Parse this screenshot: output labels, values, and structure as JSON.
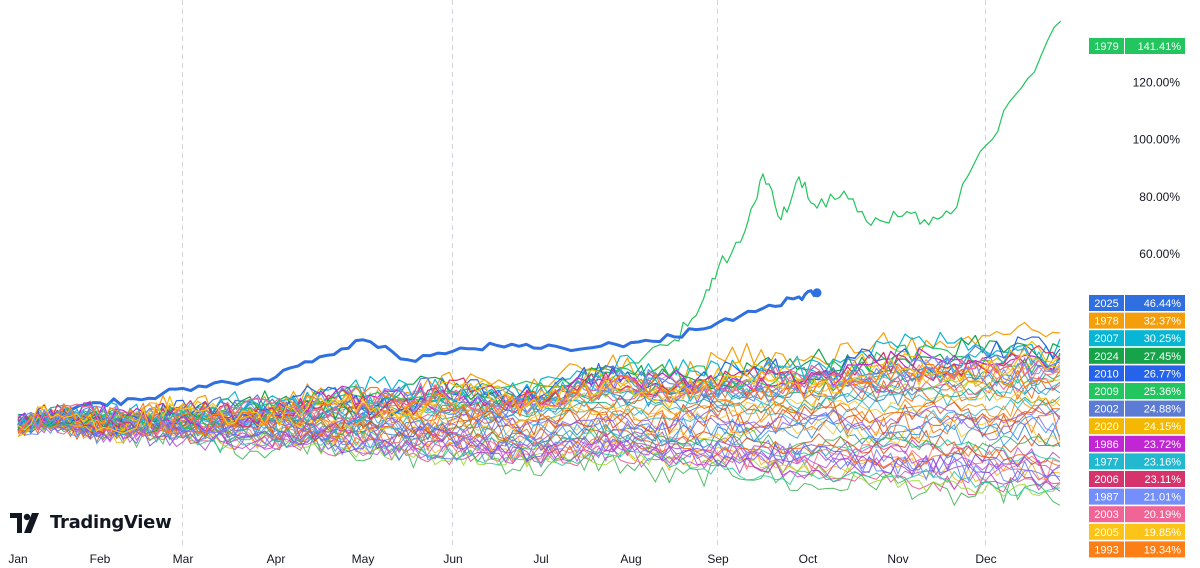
{
  "brand": {
    "name": "TradingView"
  },
  "chart_data": {
    "type": "line",
    "x_axis": {
      "ticks": [
        "Jan",
        "Feb",
        "Mar",
        "Apr",
        "May",
        "Jun",
        "Jul",
        "Aug",
        "Sep",
        "Oct",
        "Nov",
        "Dec"
      ]
    },
    "y_axis": {
      "ticks": [
        "60.00%",
        "80.00%",
        "100.00%",
        "120.00%"
      ],
      "ylim": [
        -40,
        146
      ],
      "unit": "%"
    },
    "grid": {
      "vertical_dashed_at": [
        "Mar",
        "Jun",
        "Sep",
        "Dec"
      ]
    },
    "series": [
      {
        "name": "1979",
        "label": "141.41%",
        "color": "#22c55e",
        "final": 141.41,
        "points": [
          [
            0,
            0
          ],
          [
            1,
            3
          ],
          [
            2,
            5
          ],
          [
            3,
            8
          ],
          [
            4,
            10
          ],
          [
            5,
            12
          ],
          [
            6,
            14
          ],
          [
            7,
            22
          ],
          [
            7.5,
            30
          ],
          [
            7.8,
            42
          ],
          [
            8,
            55
          ],
          [
            8.3,
            68
          ],
          [
            8.5,
            88
          ],
          [
            8.7,
            72
          ],
          [
            8.9,
            87
          ],
          [
            9.1,
            76
          ],
          [
            9.4,
            82
          ],
          [
            9.7,
            70
          ],
          [
            10,
            73
          ],
          [
            10.3,
            72
          ],
          [
            10.6,
            74
          ],
          [
            11,
            98
          ],
          [
            11.4,
            118
          ],
          [
            11.85,
            141.41
          ]
        ]
      },
      {
        "name": "2025",
        "label": "46.44%",
        "color": "#2f6fe0",
        "final": 46.44,
        "highlight": true,
        "points": [
          [
            0,
            0
          ],
          [
            0.5,
            4
          ],
          [
            1,
            8
          ],
          [
            1.5,
            9
          ],
          [
            2,
            13
          ],
          [
            2.5,
            15
          ],
          [
            3,
            17
          ],
          [
            3.5,
            24
          ],
          [
            4,
            30
          ],
          [
            4.5,
            23
          ],
          [
            5,
            26
          ],
          [
            5.5,
            28
          ],
          [
            6,
            27
          ],
          [
            6.5,
            27
          ],
          [
            7,
            29
          ],
          [
            7.5,
            31
          ],
          [
            8,
            36
          ],
          [
            8.5,
            41
          ],
          [
            8.9,
            45
          ],
          [
            9.1,
            46.44
          ]
        ]
      },
      {
        "name": "1978",
        "label": "32.37%",
        "color": "#f59e0b",
        "final": 32.37
      },
      {
        "name": "2007",
        "label": "30.25%",
        "color": "#06b6d4",
        "final": 30.25
      },
      {
        "name": "2024",
        "label": "27.45%",
        "color": "#16a34a",
        "final": 27.45
      },
      {
        "name": "2010",
        "label": "26.77%",
        "color": "#2563eb",
        "final": 26.77
      },
      {
        "name": "2009",
        "label": "25.36%",
        "color": "#22c55e",
        "final": 25.36
      },
      {
        "name": "2002",
        "label": "24.88%",
        "color": "#5b7bd5",
        "final": 24.88
      },
      {
        "name": "2020",
        "label": "24.15%",
        "color": "#f5b800",
        "final": 24.15
      },
      {
        "name": "1986",
        "label": "23.72%",
        "color": "#c026d3",
        "final": 23.72
      },
      {
        "name": "1977",
        "label": "23.16%",
        "color": "#22b8cf",
        "final": 23.16
      },
      {
        "name": "2006",
        "label": "23.11%",
        "color": "#d6336c",
        "final": 23.11
      },
      {
        "name": "1987",
        "label": "21.01%",
        "color": "#748ffc",
        "final": 21.01
      },
      {
        "name": "2003",
        "label": "20.19%",
        "color": "#f06595",
        "final": 20.19
      },
      {
        "name": "2005",
        "label": "19.85%",
        "color": "#fcc419",
        "final": 19.85
      },
      {
        "name": "1993",
        "label": "19.34%",
        "color": "#fd7e14",
        "final": 19.34
      }
    ],
    "background_lines": {
      "count": 40
    }
  }
}
